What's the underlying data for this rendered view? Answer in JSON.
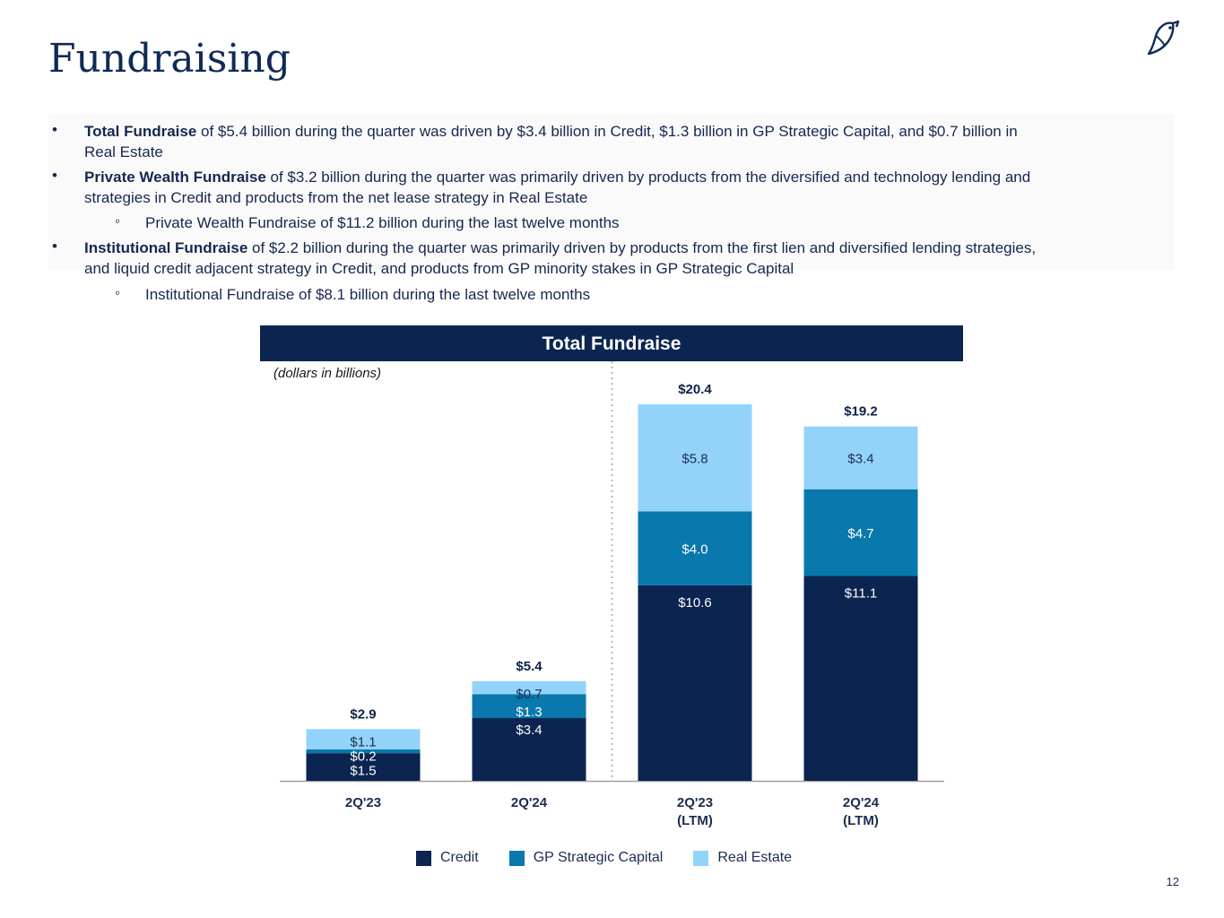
{
  "page": {
    "title": "Fundraising",
    "page_number": "12"
  },
  "bullets": [
    {
      "bold": "Total Fundraise",
      "text_1": " of $5.4 billion during the quarter was driven by $3.4 billion in Credit, $1.3 billion in GP Strategic Capital, and $0.7 billion in",
      "text_2": "Real Estate"
    },
    {
      "bold": "Private Wealth Fundraise",
      "text_1": " of $3.2 billion during the quarter was primarily driven by products from the diversified and technology lending and",
      "text_2": "strategies in Credit and products from the net lease strategy in Real Estate"
    },
    {
      "sub": "Private Wealth Fundraise of $11.2 billion during the last twelve months"
    },
    {
      "bold": "Institutional Fundraise",
      "text_1": " of $2.2 billion during the quarter was primarily driven by products from the first lien and diversified lending strategies,",
      "text_2": "and liquid credit adjacent strategy in Credit, and products from GP minority stakes in GP Strategic Capital"
    },
    {
      "sub": "Institutional Fundraise of $8.1 billion during the last twelve months"
    }
  ],
  "bullet_marker": "•",
  "sub_marker": "◦",
  "chart_data": {
    "type": "bar",
    "stacked": true,
    "title": "Total Fundraise",
    "subtitle": "(dollars in billions)",
    "categories": [
      [
        "2Q'23"
      ],
      [
        "2Q'24"
      ],
      [
        "2Q'23",
        "(LTM)"
      ],
      [
        "2Q'24",
        "(LTM)"
      ]
    ],
    "series": [
      {
        "name": "Credit",
        "color": "#0b2550",
        "values": [
          1.5,
          3.4,
          10.6,
          11.1
        ],
        "labels": [
          "$1.5",
          "$3.4",
          "$10.6",
          "$11.1"
        ]
      },
      {
        "name": "GP Strategic Capital",
        "color": "#0878ad",
        "values": [
          0.2,
          1.3,
          4.0,
          4.7
        ],
        "labels": [
          "$0.2",
          "$1.3",
          "$4.0",
          "$4.7"
        ]
      },
      {
        "name": "Real Estate",
        "color": "#93d3fa",
        "values": [
          1.1,
          0.7,
          5.8,
          3.4
        ],
        "labels": [
          "$1.1",
          "$0.7",
          "$5.8",
          "$3.4"
        ]
      }
    ],
    "totals": [
      "$2.9",
      "$5.4",
      "$20.4",
      "$19.2"
    ],
    "ylim": [
      0,
      20.4
    ],
    "separator_after_category": 1,
    "legend_position": "bottom"
  }
}
